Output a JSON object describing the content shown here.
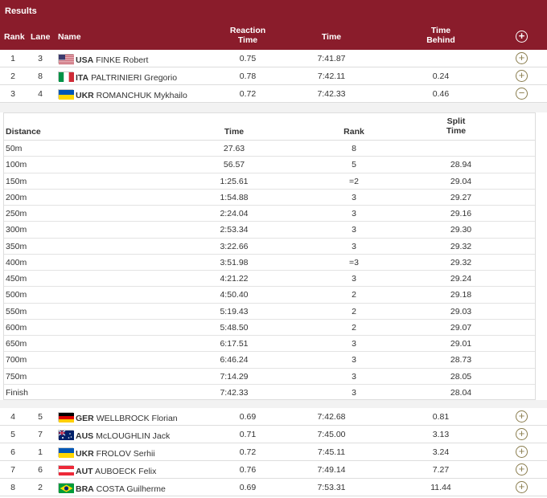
{
  "title": "Results",
  "columns": {
    "rank": "Rank",
    "lane": "Lane",
    "name": "Name",
    "reaction_1": "Reaction",
    "reaction_2": "Time",
    "time": "Time",
    "behind_1": "Time",
    "behind_2": "Behind",
    "expand_all_icon": "plus-circle-icon"
  },
  "top_results": [
    {
      "rank": "1",
      "lane": "3",
      "noc": "USA",
      "name": "FINKE Robert",
      "reaction": "0.75",
      "time": "7:41.87",
      "behind": "",
      "toggle": "+"
    },
    {
      "rank": "2",
      "lane": "8",
      "noc": "ITA",
      "name": "PALTRINIERI Gregorio",
      "reaction": "0.78",
      "time": "7:42.11",
      "behind": "0.24",
      "toggle": "+"
    },
    {
      "rank": "3",
      "lane": "4",
      "noc": "UKR",
      "name": "ROMANCHUK Mykhailo",
      "reaction": "0.72",
      "time": "7:42.33",
      "behind": "0.46",
      "toggle": "−"
    }
  ],
  "split_columns": {
    "distance": "Distance",
    "time": "Time",
    "rank": "Rank",
    "split_1": "Split",
    "split_2": "Time"
  },
  "splits": [
    {
      "distance": "50m",
      "time": "27.63",
      "rank": "8",
      "split": ""
    },
    {
      "distance": "100m",
      "time": "56.57",
      "rank": "5",
      "split": "28.94"
    },
    {
      "distance": "150m",
      "time": "1:25.61",
      "rank": "=2",
      "split": "29.04"
    },
    {
      "distance": "200m",
      "time": "1:54.88",
      "rank": "3",
      "split": "29.27"
    },
    {
      "distance": "250m",
      "time": "2:24.04",
      "rank": "3",
      "split": "29.16"
    },
    {
      "distance": "300m",
      "time": "2:53.34",
      "rank": "3",
      "split": "29.30"
    },
    {
      "distance": "350m",
      "time": "3:22.66",
      "rank": "3",
      "split": "29.32"
    },
    {
      "distance": "400m",
      "time": "3:51.98",
      "rank": "=3",
      "split": "29.32"
    },
    {
      "distance": "450m",
      "time": "4:21.22",
      "rank": "3",
      "split": "29.24"
    },
    {
      "distance": "500m",
      "time": "4:50.40",
      "rank": "2",
      "split": "29.18"
    },
    {
      "distance": "550m",
      "time": "5:19.43",
      "rank": "2",
      "split": "29.03"
    },
    {
      "distance": "600m",
      "time": "5:48.50",
      "rank": "2",
      "split": "29.07"
    },
    {
      "distance": "650m",
      "time": "6:17.51",
      "rank": "3",
      "split": "29.01"
    },
    {
      "distance": "700m",
      "time": "6:46.24",
      "rank": "3",
      "split": "28.73"
    },
    {
      "distance": "750m",
      "time": "7:14.29",
      "rank": "3",
      "split": "28.05"
    },
    {
      "distance": "Finish",
      "time": "7:42.33",
      "rank": "3",
      "split": "28.04"
    }
  ],
  "bottom_results": [
    {
      "rank": "4",
      "lane": "5",
      "noc": "GER",
      "name": "WELLBROCK Florian",
      "reaction": "0.69",
      "time": "7:42.68",
      "behind": "0.81",
      "toggle": "+"
    },
    {
      "rank": "5",
      "lane": "7",
      "noc": "AUS",
      "name": "McLOUGHLIN Jack",
      "reaction": "0.71",
      "time": "7:45.00",
      "behind": "3.13",
      "toggle": "+"
    },
    {
      "rank": "6",
      "lane": "1",
      "noc": "UKR",
      "name": "FROLOV Serhii",
      "reaction": "0.72",
      "time": "7:45.11",
      "behind": "3.24",
      "toggle": "+"
    },
    {
      "rank": "7",
      "lane": "6",
      "noc": "AUT",
      "name": "AUBOECK Felix",
      "reaction": "0.76",
      "time": "7:49.14",
      "behind": "7.27",
      "toggle": "+"
    },
    {
      "rank": "8",
      "lane": "2",
      "noc": "BRA",
      "name": "COSTA Guilherme",
      "reaction": "0.69",
      "time": "7:53.31",
      "behind": "11.44",
      "toggle": "+"
    }
  ],
  "colors": {
    "header_bg": "#8a1c2b",
    "toggle": "#8a7d4e"
  }
}
